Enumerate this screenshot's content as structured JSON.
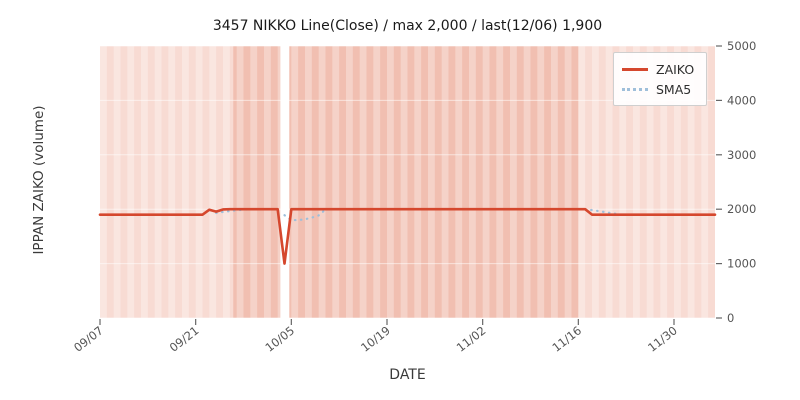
{
  "chart_data": {
    "type": "line",
    "title": "3457 NIKKO Line(Close) / max 2,000 / last(12/06) 1,900",
    "xlabel": "DATE",
    "ylabel": "IPPAN ZAIKO (volume)",
    "x_axis": {
      "unit": "day-offset-from-09/07",
      "total_days": 90,
      "ticks": [
        {
          "day": 0,
          "label": "09/07"
        },
        {
          "day": 14,
          "label": "09/21"
        },
        {
          "day": 28,
          "label": "10/05"
        },
        {
          "day": 42,
          "label": "10/19"
        },
        {
          "day": 56,
          "label": "11/02"
        },
        {
          "day": 70,
          "label": "11/16"
        },
        {
          "day": 84,
          "label": "11/30"
        }
      ]
    },
    "y_axis": {
      "min": 0,
      "max": 5000,
      "ticks": [
        0,
        1000,
        2000,
        3000,
        4000,
        5000
      ],
      "tick_labels": [
        "0",
        "1000",
        "2000",
        "3000",
        "4000",
        "5000"
      ],
      "side": "right"
    },
    "series": [
      {
        "name": "ZAIKO",
        "color": "#d5472d",
        "style": "solid",
        "width": 2.6,
        "points": [
          [
            0,
            1900
          ],
          [
            15,
            1900
          ],
          [
            16,
            1990
          ],
          [
            17,
            1955
          ],
          [
            18,
            1995
          ],
          [
            19,
            2000
          ],
          [
            26,
            2000
          ],
          [
            27,
            1000
          ],
          [
            28,
            2000
          ],
          [
            71,
            2000
          ],
          [
            72,
            1900
          ],
          [
            90,
            1900
          ]
        ]
      },
      {
        "name": "SMA5",
        "color": "#9fbfda",
        "style": "dotted",
        "width": 2.2,
        "segments": [
          [
            [
              17,
              1930
            ],
            [
              18,
              1950
            ],
            [
              19,
              1965
            ],
            [
              20,
              1980
            ],
            [
              21,
              1990
            ],
            [
              22,
              2000
            ]
          ],
          [
            [
              27,
              1890
            ],
            [
              28,
              1800
            ],
            [
              29,
              1800
            ],
            [
              30,
              1815
            ],
            [
              31,
              1845
            ],
            [
              32,
              1885
            ],
            [
              33,
              1995
            ]
          ],
          [
            [
              71,
              1995
            ],
            [
              72,
              1985
            ],
            [
              73,
              1965
            ],
            [
              74,
              1945
            ],
            [
              75,
              1925
            ],
            [
              76,
              1905
            ]
          ]
        ]
      }
    ],
    "background": {
      "plot_color": "#f8dbd3",
      "highlight_band": {
        "from_day": 19.5,
        "to_day": 70,
        "color": "#f1bfb1"
      },
      "stripe_color": "#ffffff",
      "stripe_opacity": 0.3,
      "gap_band": {
        "from_day": 26.4,
        "to_day": 27.7,
        "color": "#ffffff"
      },
      "gridline_color": "#ffffff"
    },
    "legend": {
      "position": "upper right",
      "entries": [
        "ZAIKO",
        "SMA5"
      ]
    }
  }
}
